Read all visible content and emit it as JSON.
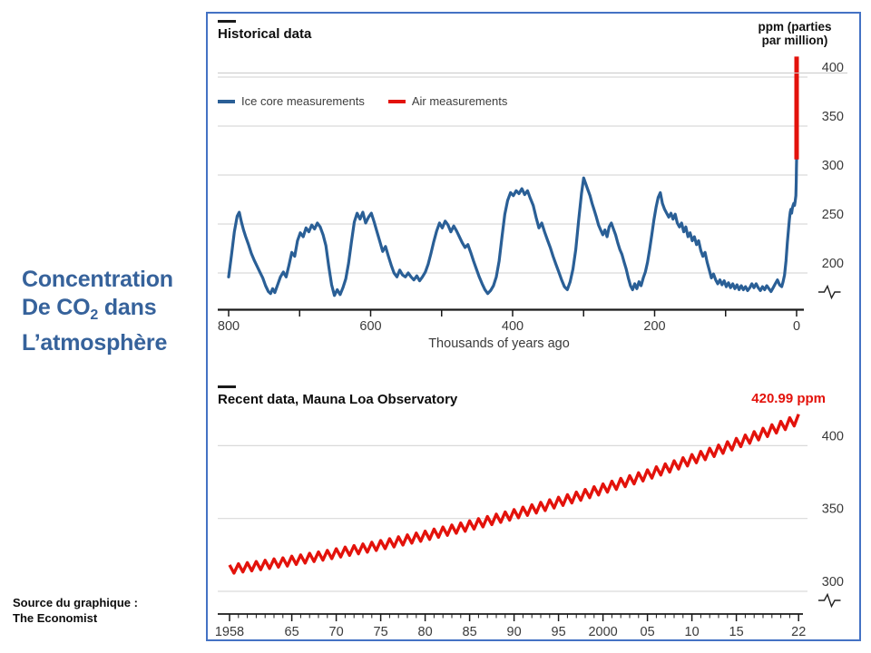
{
  "left_panel": {
    "title_line1": "Concentration",
    "title_line2_pre": "De CO",
    "title_line2_sub": "2",
    "title_line2_post": " dans",
    "title_line3": "L’atmosphère",
    "title_color": "#36629B",
    "source_line1": "Source du graphique :",
    "source_line2": "The Economist"
  },
  "historical": {
    "title": "Historical data",
    "legend": [
      {
        "label": "Ice core measurements",
        "color": "#2A5F96"
      },
      {
        "label": "Air measurements",
        "color": "#E3120B"
      }
    ],
    "unit_label_line1": "ppm (parties",
    "unit_label_line2": "par million)",
    "y_ticks": [
      "400",
      "350",
      "300",
      "250",
      "200"
    ],
    "x_ticks": [
      "800",
      "600",
      "400",
      "200",
      "0"
    ],
    "x_axis_label": "Thousands of years ago"
  },
  "recent": {
    "title": "Recent data, Mauna Loa Observatory",
    "annotation": "420.99 ppm",
    "y_ticks": [
      "400",
      "350",
      "300"
    ],
    "x_ticks": [
      "1958",
      "65",
      "70",
      "75",
      "80",
      "85",
      "90",
      "95",
      "2000",
      "05",
      "10",
      "15",
      "22"
    ]
  },
  "chart_data": [
    {
      "type": "line",
      "title": "Historical data",
      "series_name": "Ice core measurements",
      "x_label": "Thousands of years ago",
      "y_label": "ppm (parties par million)",
      "x_range_kyr_ago": [
        800,
        0
      ],
      "y_ticks_ppm": [
        400,
        350,
        300,
        250,
        200
      ],
      "y_axis_break": true,
      "line_color": "#2A5F96",
      "air_measurements": {
        "label": "Air measurements",
        "x_kyr": 0,
        "from_ppm": 316,
        "to_ppm": 421,
        "color": "#E3120B"
      },
      "points_kyr_ppm": [
        [
          800,
          196
        ],
        [
          796,
          218
        ],
        [
          792,
          242
        ],
        [
          788,
          258
        ],
        [
          785,
          262
        ],
        [
          782,
          252
        ],
        [
          779,
          244
        ],
        [
          776,
          237
        ],
        [
          772,
          229
        ],
        [
          768,
          220
        ],
        [
          764,
          213
        ],
        [
          760,
          207
        ],
        [
          756,
          201
        ],
        [
          752,
          195
        ],
        [
          748,
          187
        ],
        [
          744,
          181
        ],
        [
          741,
          179
        ],
        [
          738,
          184
        ],
        [
          735,
          180
        ],
        [
          731,
          188
        ],
        [
          727,
          196
        ],
        [
          723,
          201
        ],
        [
          719,
          196
        ],
        [
          715,
          208
        ],
        [
          711,
          221
        ],
        [
          707,
          217
        ],
        [
          703,
          233
        ],
        [
          699,
          241
        ],
        [
          695,
          237
        ],
        [
          691,
          246
        ],
        [
          687,
          242
        ],
        [
          683,
          249
        ],
        [
          679,
          245
        ],
        [
          675,
          251
        ],
        [
          671,
          247
        ],
        [
          667,
          239
        ],
        [
          663,
          228
        ],
        [
          659,
          207
        ],
        [
          655,
          188
        ],
        [
          651,
          177
        ],
        [
          647,
          183
        ],
        [
          643,
          178
        ],
        [
          639,
          185
        ],
        [
          635,
          194
        ],
        [
          631,
          210
        ],
        [
          627,
          232
        ],
        [
          623,
          252
        ],
        [
          619,
          261
        ],
        [
          615,
          255
        ],
        [
          611,
          262
        ],
        [
          607,
          251
        ],
        [
          603,
          257
        ],
        [
          599,
          261
        ],
        [
          595,
          252
        ],
        [
          591,
          242
        ],
        [
          587,
          232
        ],
        [
          583,
          222
        ],
        [
          579,
          227
        ],
        [
          575,
          217
        ],
        [
          571,
          208
        ],
        [
          567,
          200
        ],
        [
          563,
          196
        ],
        [
          559,
          203
        ],
        [
          555,
          198
        ],
        [
          551,
          196
        ],
        [
          547,
          200
        ],
        [
          543,
          196
        ],
        [
          539,
          193
        ],
        [
          535,
          197
        ],
        [
          531,
          192
        ],
        [
          527,
          196
        ],
        [
          523,
          201
        ],
        [
          519,
          209
        ],
        [
          515,
          220
        ],
        [
          511,
          232
        ],
        [
          507,
          243
        ],
        [
          503,
          251
        ],
        [
          499,
          246
        ],
        [
          495,
          253
        ],
        [
          491,
          249
        ],
        [
          487,
          242
        ],
        [
          483,
          248
        ],
        [
          479,
          243
        ],
        [
          475,
          237
        ],
        [
          471,
          231
        ],
        [
          467,
          226
        ],
        [
          463,
          229
        ],
        [
          459,
          221
        ],
        [
          455,
          212
        ],
        [
          451,
          204
        ],
        [
          447,
          196
        ],
        [
          443,
          189
        ],
        [
          439,
          183
        ],
        [
          435,
          179
        ],
        [
          431,
          182
        ],
        [
          427,
          187
        ],
        [
          423,
          196
        ],
        [
          419,
          212
        ],
        [
          415,
          237
        ],
        [
          411,
          260
        ],
        [
          407,
          274
        ],
        [
          403,
          282
        ],
        [
          399,
          279
        ],
        [
          395,
          284
        ],
        [
          391,
          281
        ],
        [
          387,
          286
        ],
        [
          383,
          280
        ],
        [
          379,
          284
        ],
        [
          375,
          276
        ],
        [
          371,
          269
        ],
        [
          367,
          257
        ],
        [
          363,
          246
        ],
        [
          359,
          251
        ],
        [
          355,
          242
        ],
        [
          351,
          234
        ],
        [
          347,
          226
        ],
        [
          343,
          217
        ],
        [
          339,
          209
        ],
        [
          335,
          201
        ],
        [
          331,
          193
        ],
        [
          327,
          186
        ],
        [
          323,
          183
        ],
        [
          319,
          191
        ],
        [
          315,
          204
        ],
        [
          311,
          224
        ],
        [
          307,
          254
        ],
        [
          303,
          281
        ],
        [
          300,
          297
        ],
        [
          297,
          291
        ],
        [
          294,
          285
        ],
        [
          291,
          279
        ],
        [
          288,
          271
        ],
        [
          285,
          264
        ],
        [
          282,
          257
        ],
        [
          279,
          249
        ],
        [
          276,
          244
        ],
        [
          273,
          239
        ],
        [
          270,
          244
        ],
        [
          267,
          237
        ],
        [
          264,
          247
        ],
        [
          261,
          251
        ],
        [
          258,
          245
        ],
        [
          255,
          239
        ],
        [
          252,
          231
        ],
        [
          249,
          224
        ],
        [
          246,
          219
        ],
        [
          243,
          211
        ],
        [
          240,
          204
        ],
        [
          237,
          195
        ],
        [
          234,
          187
        ],
        [
          231,
          183
        ],
        [
          228,
          189
        ],
        [
          225,
          184
        ],
        [
          222,
          191
        ],
        [
          219,
          187
        ],
        [
          216,
          195
        ],
        [
          213,
          201
        ],
        [
          210,
          211
        ],
        [
          207,
          224
        ],
        [
          204,
          239
        ],
        [
          201,
          254
        ],
        [
          198,
          267
        ],
        [
          195,
          277
        ],
        [
          192,
          282
        ],
        [
          189,
          271
        ],
        [
          186,
          265
        ],
        [
          183,
          261
        ],
        [
          180,
          257
        ],
        [
          177,
          261
        ],
        [
          174,
          255
        ],
        [
          171,
          260
        ],
        [
          168,
          251
        ],
        [
          165,
          247
        ],
        [
          162,
          251
        ],
        [
          159,
          242
        ],
        [
          156,
          247
        ],
        [
          153,
          237
        ],
        [
          150,
          241
        ],
        [
          147,
          233
        ],
        [
          144,
          237
        ],
        [
          141,
          229
        ],
        [
          138,
          233
        ],
        [
          135,
          223
        ],
        [
          132,
          217
        ],
        [
          129,
          221
        ],
        [
          126,
          211
        ],
        [
          123,
          203
        ],
        [
          120,
          195
        ],
        [
          117,
          199
        ],
        [
          114,
          193
        ],
        [
          111,
          189
        ],
        [
          108,
          193
        ],
        [
          105,
          188
        ],
        [
          102,
          192
        ],
        [
          99,
          186
        ],
        [
          96,
          190
        ],
        [
          93,
          185
        ],
        [
          90,
          189
        ],
        [
          87,
          184
        ],
        [
          84,
          188
        ],
        [
          81,
          183
        ],
        [
          78,
          187
        ],
        [
          75,
          183
        ],
        [
          72,
          186
        ],
        [
          69,
          182
        ],
        [
          66,
          185
        ],
        [
          63,
          189
        ],
        [
          60,
          185
        ],
        [
          57,
          189
        ],
        [
          54,
          185
        ],
        [
          51,
          182
        ],
        [
          48,
          186
        ],
        [
          45,
          183
        ],
        [
          42,
          187
        ],
        [
          39,
          184
        ],
        [
          36,
          181
        ],
        [
          33,
          185
        ],
        [
          30,
          189
        ],
        [
          27,
          193
        ],
        [
          24,
          188
        ],
        [
          21,
          186
        ],
        [
          19,
          191
        ],
        [
          17,
          198
        ],
        [
          15,
          212
        ],
        [
          13,
          231
        ],
        [
          11,
          248
        ],
        [
          10,
          256
        ],
        [
          9,
          262
        ],
        [
          8,
          265
        ],
        [
          7,
          261
        ],
        [
          6,
          266
        ],
        [
          5,
          269
        ],
        [
          4,
          271
        ],
        [
          3,
          269
        ],
        [
          2,
          273
        ],
        [
          1,
          279
        ],
        [
          0.5,
          293
        ],
        [
          0.2,
          306
        ],
        [
          0,
          316
        ]
      ]
    },
    {
      "type": "line",
      "title": "Recent data, Mauna Loa Observatory",
      "x_years": [
        1958,
        2022
      ],
      "y_ticks_ppm": [
        400,
        350,
        300
      ],
      "y_axis_break": true,
      "latest_label": "420.99 ppm",
      "latest_value_ppm": 420.99,
      "seasonal_amplitude_ppm": 2.8,
      "line_color": "#E3120B",
      "x_tick_years": [
        1958,
        1965,
        1970,
        1975,
        1980,
        1985,
        1990,
        1995,
        2000,
        2005,
        2010,
        2015,
        2022
      ],
      "annual_mean_ppm": [
        315.3,
        316.1,
        316.9,
        317.7,
        318.5,
        319.4,
        320.2,
        321.3,
        322.2,
        323.3,
        324.2,
        325.3,
        326.4,
        327.5,
        328.6,
        329.7,
        330.9,
        332.1,
        333.3,
        334.6,
        335.9,
        337.2,
        338.5,
        339.9,
        341.3,
        342.7,
        344.1,
        345.6,
        347.1,
        348.6,
        350.2,
        351.7,
        353.3,
        355.0,
        356.6,
        358.3,
        360.0,
        361.8,
        363.5,
        365.3,
        367.1,
        369.0,
        370.9,
        372.8,
        374.7,
        376.6,
        378.6,
        380.6,
        382.7,
        384.7,
        386.8,
        388.9,
        391.1,
        393.2,
        395.4,
        397.6,
        399.9,
        402.2,
        404.5,
        406.8,
        409.1,
        411.5,
        413.9,
        416.4,
        418.8
      ]
    }
  ]
}
